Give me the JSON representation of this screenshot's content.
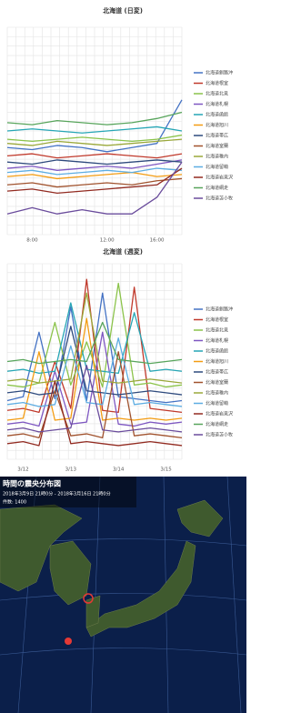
{
  "chart_data": [
    {
      "type": "line",
      "title": "北海道 (日変)",
      "categories": [
        null,
        "8:00",
        null,
        null,
        "12:00",
        null,
        "16:00",
        null
      ],
      "ylim": [
        0,
        10
      ],
      "grid": true,
      "series": [
        {
          "name": "北海道釧路沖",
          "color": "#4472c4",
          "values": [
            4.2,
            4.1,
            4.3,
            4.2,
            4.0,
            4.2,
            4.4,
            6.5
          ]
        },
        {
          "name": "北海道根室",
          "color": "#c0392b",
          "values": [
            3.8,
            3.9,
            3.7,
            3.8,
            3.9,
            3.8,
            3.7,
            3.9
          ]
        },
        {
          "name": "北海道北見",
          "color": "#8bc34a",
          "values": [
            4.6,
            4.5,
            4.6,
            4.7,
            4.6,
            4.5,
            4.6,
            4.8
          ]
        },
        {
          "name": "北海道札幌",
          "color": "#7e57c2",
          "values": [
            3.2,
            3.3,
            3.1,
            3.2,
            3.3,
            3.2,
            3.4,
            3.6
          ]
        },
        {
          "name": "北海道函館",
          "color": "#26a6b5",
          "values": [
            5.0,
            5.1,
            5.0,
            4.9,
            5.0,
            5.1,
            5.2,
            5.0
          ]
        },
        {
          "name": "北海道旭川",
          "color": "#f39c12",
          "values": [
            2.8,
            2.9,
            2.7,
            2.8,
            2.9,
            3.0,
            2.8,
            2.9
          ]
        },
        {
          "name": "北海道帯広",
          "color": "#2e4a7d",
          "values": [
            3.5,
            3.4,
            3.6,
            3.5,
            3.4,
            3.5,
            3.6,
            3.5
          ]
        },
        {
          "name": "北海道室蘭",
          "color": "#a0522d",
          "values": [
            2.4,
            2.5,
            2.3,
            2.4,
            2.5,
            2.4,
            2.6,
            2.7
          ]
        },
        {
          "name": "北海道稚内",
          "color": "#9aa83a",
          "values": [
            4.4,
            4.3,
            4.5,
            4.4,
            4.3,
            4.4,
            4.5,
            4.6
          ]
        },
        {
          "name": "北海道留萌",
          "color": "#5dade2",
          "values": [
            3.0,
            3.1,
            2.9,
            3.0,
            3.1,
            3.0,
            3.2,
            3.1
          ]
        },
        {
          "name": "北海道岩見沢",
          "color": "#922b21",
          "values": [
            2.1,
            2.2,
            2.0,
            2.1,
            2.2,
            2.3,
            2.4,
            3.2
          ]
        },
        {
          "name": "北海道網走",
          "color": "#58a55c",
          "values": [
            5.4,
            5.3,
            5.5,
            5.4,
            5.3,
            5.4,
            5.6,
            5.9
          ]
        },
        {
          "name": "北海道苫小牧",
          "color": "#6a4c9c",
          "values": [
            1.0,
            1.3,
            1.0,
            1.2,
            1.0,
            1.0,
            1.8,
            3.5
          ]
        }
      ]
    },
    {
      "type": "line",
      "title": "北海道 (週変)",
      "categories": [
        null,
        "3/12",
        null,
        null,
        "3/13",
        null,
        null,
        "3/14",
        null,
        null,
        "3/15",
        null
      ],
      "ylim": [
        0,
        10
      ],
      "grid": true,
      "series": [
        {
          "name": "北海道釧路沖",
          "color": "#4472c4",
          "values": [
            3.0,
            3.2,
            6.5,
            3.1,
            7.8,
            3.0,
            8.5,
            3.2,
            3.1,
            3.0,
            2.9,
            3.0
          ]
        },
        {
          "name": "北海道根室",
          "color": "#c0392b",
          "values": [
            2.5,
            2.6,
            2.4,
            5.0,
            2.6,
            9.2,
            2.5,
            2.4,
            8.8,
            2.6,
            2.5,
            2.4
          ]
        },
        {
          "name": "北海道北見",
          "color": "#8bc34a",
          "values": [
            3.8,
            3.7,
            3.9,
            7.0,
            3.8,
            6.0,
            3.7,
            9.0,
            3.8,
            3.9,
            3.7,
            3.8
          ]
        },
        {
          "name": "北海道札幌",
          "color": "#7e57c2",
          "values": [
            1.8,
            1.9,
            1.7,
            4.5,
            1.8,
            1.9,
            6.5,
            1.8,
            1.7,
            1.9,
            1.8,
            1.9
          ]
        },
        {
          "name": "北海道函館",
          "color": "#26a6b5",
          "values": [
            4.5,
            4.6,
            4.4,
            4.5,
            8.0,
            4.6,
            4.5,
            4.4,
            7.5,
            4.5,
            4.6,
            4.5
          ]
        },
        {
          "name": "北海道旭川",
          "color": "#f39c12",
          "values": [
            2.0,
            2.1,
            5.5,
            2.0,
            2.1,
            7.2,
            2.0,
            2.1,
            2.0,
            2.1,
            2.0,
            2.1
          ]
        },
        {
          "name": "北海道帯広",
          "color": "#2e4a7d",
          "values": [
            3.4,
            3.5,
            3.3,
            3.4,
            6.8,
            3.5,
            3.4,
            3.3,
            3.4,
            3.5,
            3.4,
            3.3
          ]
        },
        {
          "name": "北海道室蘭",
          "color": "#a0522d",
          "values": [
            1.2,
            1.3,
            1.1,
            3.5,
            1.2,
            1.3,
            1.1,
            5.5,
            1.2,
            1.3,
            1.2,
            1.1
          ]
        },
        {
          "name": "北海道稚内",
          "color": "#9aa83a",
          "values": [
            4.0,
            4.1,
            3.9,
            4.0,
            4.1,
            8.5,
            4.0,
            3.9,
            4.0,
            4.1,
            4.0,
            3.9
          ]
        },
        {
          "name": "北海道留萌",
          "color": "#5dade2",
          "values": [
            2.8,
            2.9,
            2.7,
            2.8,
            5.8,
            2.9,
            2.8,
            6.2,
            2.8,
            2.9,
            2.8,
            2.7
          ]
        },
        {
          "name": "北海道岩見沢",
          "color": "#922b21",
          "values": [
            0.8,
            0.9,
            0.7,
            4.0,
            0.8,
            0.9,
            0.8,
            0.7,
            0.8,
            0.9,
            0.8,
            0.7
          ]
        },
        {
          "name": "北海道網走",
          "color": "#58a55c",
          "values": [
            5.0,
            5.1,
            4.9,
            5.0,
            5.1,
            5.0,
            7.0,
            5.1,
            5.0,
            4.9,
            5.0,
            5.1
          ]
        },
        {
          "name": "北海道苫小牧",
          "color": "#6a4c9c",
          "values": [
            1.5,
            1.6,
            1.4,
            1.5,
            1.6,
            4.8,
            1.5,
            1.4,
            1.5,
            1.6,
            1.5,
            1.4
          ]
        }
      ]
    }
  ],
  "map": {
    "title": "時間の震央分布図",
    "period": "2018年3月9日 21時0分 - 2018年3月16日 21時0分",
    "count": "件数: 1400"
  }
}
